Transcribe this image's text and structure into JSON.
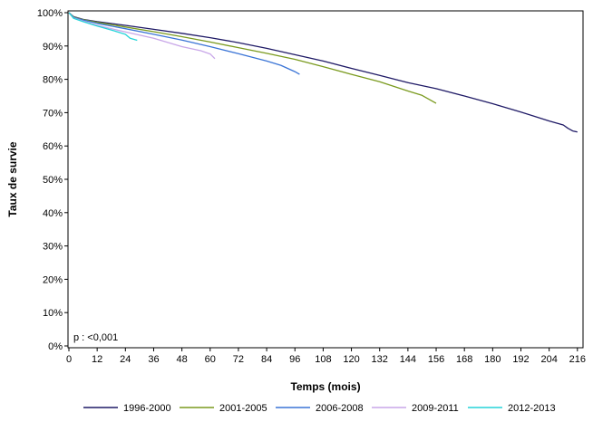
{
  "chart_data": {
    "type": "line",
    "title": "",
    "xlabel": "Temps (mois)",
    "ylabel": "Taux de survie",
    "xlim": [
      0,
      218
    ],
    "ylim": [
      0,
      100
    ],
    "x_ticks": [
      0,
      12,
      24,
      36,
      48,
      60,
      72,
      84,
      96,
      108,
      120,
      132,
      144,
      156,
      168,
      180,
      192,
      204,
      216
    ],
    "y_ticks": [
      0,
      10,
      20,
      30,
      40,
      50,
      60,
      70,
      80,
      90,
      100
    ],
    "y_tick_labels": [
      "0%",
      "10%",
      "20%",
      "30%",
      "40%",
      "50%",
      "60%",
      "70%",
      "80%",
      "90%",
      "100%"
    ],
    "grid": false,
    "legend_position": "bottom",
    "annotation": "p : <0,001",
    "series": [
      {
        "name": "1996-2000",
        "color": "#1f1a66",
        "points": [
          [
            0,
            100
          ],
          [
            2,
            98.8
          ],
          [
            6,
            98
          ],
          [
            12,
            97.3
          ],
          [
            24,
            96.2
          ],
          [
            36,
            95
          ],
          [
            48,
            93.8
          ],
          [
            60,
            92.5
          ],
          [
            72,
            91
          ],
          [
            84,
            89.3
          ],
          [
            96,
            87.4
          ],
          [
            108,
            85.5
          ],
          [
            120,
            83.3
          ],
          [
            132,
            81.2
          ],
          [
            144,
            79
          ],
          [
            156,
            77.2
          ],
          [
            168,
            75
          ],
          [
            180,
            72.7
          ],
          [
            192,
            70.2
          ],
          [
            204,
            67.5
          ],
          [
            210,
            66.3
          ],
          [
            212,
            65.3
          ],
          [
            214,
            64.5
          ],
          [
            216,
            64.2
          ]
        ]
      },
      {
        "name": "2001-2005",
        "color": "#7a9a1e",
        "points": [
          [
            0,
            100
          ],
          [
            2,
            98.7
          ],
          [
            6,
            97.9
          ],
          [
            12,
            97.1
          ],
          [
            24,
            95.7
          ],
          [
            36,
            94.3
          ],
          [
            48,
            92.8
          ],
          [
            60,
            91.2
          ],
          [
            72,
            89.5
          ],
          [
            84,
            87.8
          ],
          [
            96,
            86
          ],
          [
            108,
            83.8
          ],
          [
            120,
            81.5
          ],
          [
            132,
            79.3
          ],
          [
            144,
            76.5
          ],
          [
            150,
            75.2
          ],
          [
            153,
            74
          ],
          [
            156,
            72.8
          ]
        ]
      },
      {
        "name": "2006-2008",
        "color": "#3a74d6",
        "points": [
          [
            0,
            100
          ],
          [
            2,
            98.6
          ],
          [
            6,
            97.8
          ],
          [
            12,
            96.8
          ],
          [
            24,
            95.2
          ],
          [
            36,
            93.5
          ],
          [
            48,
            91.8
          ],
          [
            60,
            89.8
          ],
          [
            72,
            87.7
          ],
          [
            84,
            85.5
          ],
          [
            90,
            84.2
          ],
          [
            96,
            82.3
          ],
          [
            98,
            81.5
          ]
        ]
      },
      {
        "name": "2009-2011",
        "color": "#c8a6e8",
        "points": [
          [
            0,
            100
          ],
          [
            2,
            98.4
          ],
          [
            6,
            97.5
          ],
          [
            12,
            96.2
          ],
          [
            24,
            94.2
          ],
          [
            36,
            92.3
          ],
          [
            48,
            89.8
          ],
          [
            56,
            88.6
          ],
          [
            60,
            87.6
          ],
          [
            62,
            86.2
          ]
        ]
      },
      {
        "name": "2012-2013",
        "color": "#25d4d9",
        "points": [
          [
            0,
            100
          ],
          [
            2,
            98.3
          ],
          [
            6,
            97.3
          ],
          [
            12,
            96
          ],
          [
            18,
            94.8
          ],
          [
            24,
            93.5
          ],
          [
            26,
            92.3
          ],
          [
            29,
            91.7
          ]
        ]
      }
    ]
  }
}
